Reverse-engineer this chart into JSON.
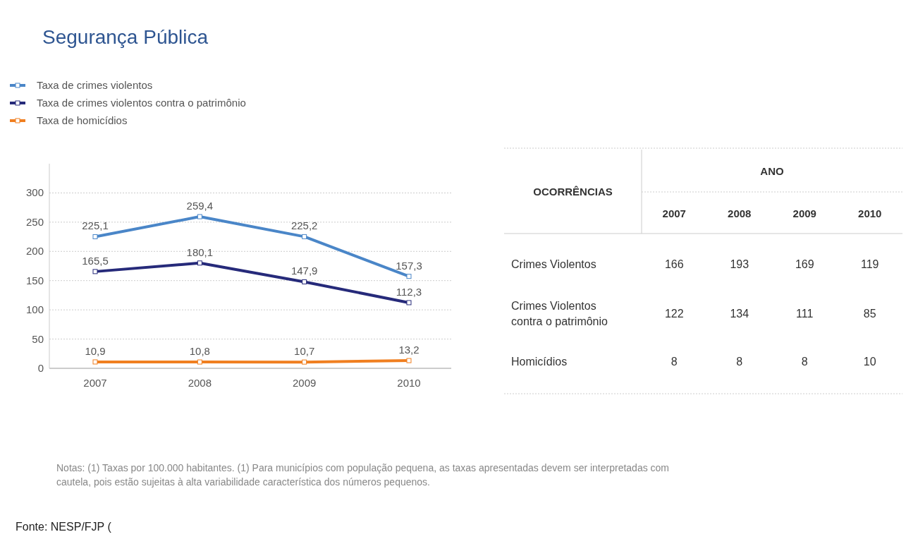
{
  "chart_data": [
    {
      "type": "line",
      "title": "Segurança Pública",
      "categories": [
        "2007",
        "2008",
        "2009",
        "2010"
      ],
      "series": [
        {
          "name": "Taxa de crimes violentos",
          "color": "#4a86c8",
          "values": [
            225.1,
            259.4,
            225.2,
            157.3
          ],
          "value_labels": [
            "225,1",
            "259,4",
            "225,2",
            "157,3"
          ]
        },
        {
          "name": "Taxa de crimes violentos contra o patrimônio",
          "color": "#262a7a",
          "values": [
            165.5,
            180.1,
            147.9,
            112.3
          ],
          "value_labels": [
            "165,5",
            "180,1",
            "147,9",
            "112,3"
          ]
        },
        {
          "name": "Taxa de homicídios",
          "color": "#f07f20",
          "values": [
            10.9,
            10.8,
            10.7,
            13.2
          ],
          "value_labels": [
            "10,9",
            "10,8",
            "10,7",
            "13,2"
          ]
        }
      ],
      "ylim": [
        0,
        350
      ],
      "yticks": [
        0,
        50,
        100,
        150,
        200,
        250,
        300
      ],
      "grid": "y",
      "legend": "top left",
      "marker": "square",
      "line_style": "solid",
      "annotations": [
        "Notas: (1) Taxas por 100.000 habitantes. (1) Para municípios com população pequena, as taxas apresentadas devem ser interpretadas com cautela, pois estão sujeitas à alta variabilidade característica dos números pequenos.",
        "Fonte: NESP/FJP ("
      ]
    },
    {
      "type": "heatmap",
      "data_labels": true,
      "xlabel": "ANO",
      "ylabel": "OCORRÊNCIAS",
      "categories": [
        "2007",
        "2008",
        "2009",
        "2010"
      ],
      "y_categories": [
        "Crimes Violentos",
        "Crimes Violentos contra o patrimônio",
        "Homicídios"
      ],
      "cells": [
        [
          166,
          193,
          169,
          119
        ],
        [
          122,
          134,
          111,
          85
        ],
        [
          8,
          8,
          8,
          10
        ]
      ]
    }
  ]
}
